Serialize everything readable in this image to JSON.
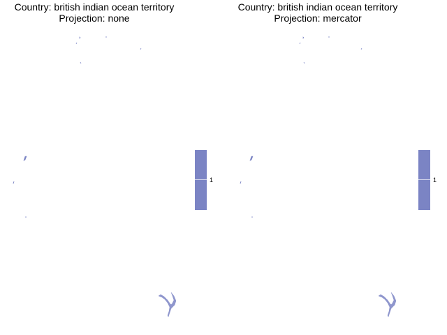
{
  "panels": [
    {
      "title_line1": "Country: british indian ocean territory",
      "title_line2": "Projection: none"
    },
    {
      "title_line1": "Country: british indian ocean territory",
      "title_line2": "Projection: mercator"
    }
  ],
  "legend": {
    "tick_label": "1",
    "fill_color": "#7b84c4"
  },
  "land_color": "#7b84c4"
}
